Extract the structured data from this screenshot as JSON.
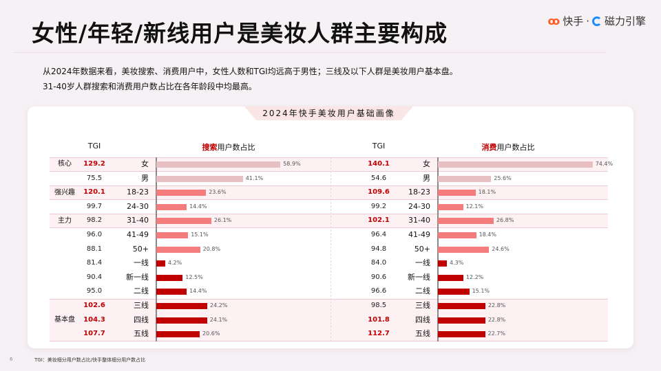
{
  "header": {
    "title": "女性/年轻/新线用户是美妆人群主要构成",
    "logo_kuaishou": "快手",
    "logo_dot": "·",
    "logo_cili": "磁力引擎"
  },
  "description": [
    "从2024年数据来看，美妆搜索、消费用户中，女性人数和TGI均远高于男性；三线及以下人群是美妆用户基本盘。",
    "31-40岁人群搜索和消费用户数占比在各年龄段中均最高。"
  ],
  "card": {
    "title": "2024年快手美妆用户基础画像"
  },
  "footnote": "TGI：美妆细分用户数占比/快手整体细分用户数占比",
  "page_number": "6",
  "colors": {
    "gender": "#e8bfc3",
    "age": "#f47c7c",
    "city": "#c00000",
    "tgi_high": "#c00000"
  },
  "chart_data": {
    "type": "bar",
    "categories": [
      "女",
      "男",
      "18-23",
      "24-30",
      "31-40",
      "41-49",
      "50+",
      "一线",
      "新一线",
      "二线",
      "三线",
      "四线",
      "五线"
    ],
    "groups": [
      {
        "label": "核心",
        "rows": [
          0
        ]
      },
      {
        "label": "强兴趣",
        "rows": [
          2
        ]
      },
      {
        "label": "主力",
        "rows": [
          4
        ]
      },
      {
        "label": "基本盘",
        "rows": [
          10,
          11,
          12
        ]
      }
    ],
    "panels": [
      {
        "tgi_header": "TGI",
        "title_highlight": "搜索",
        "title_rest": "用户数占比",
        "tgi": [
          "129.2",
          "75.5",
          "120.1",
          "99.7",
          "98.2",
          "96.0",
          "88.1",
          "81.4",
          "90.4",
          "95.0",
          "102.6",
          "104.3",
          "107.7"
        ],
        "values": [
          58.9,
          41.1,
          23.6,
          14.4,
          26.1,
          15.1,
          20.8,
          4.2,
          12.5,
          14.4,
          24.2,
          24.1,
          20.6
        ]
      },
      {
        "tgi_header": "TGI",
        "title_highlight": "消费",
        "title_rest": "用户数占比",
        "tgi": [
          "140.1",
          "54.6",
          "109.6",
          "99.2",
          "102.1",
          "96.4",
          "94.8",
          "84.0",
          "90.6",
          "96.6",
          "98.5",
          "101.8",
          "112.7"
        ],
        "values": [
          74.4,
          25.6,
          18.1,
          12.1,
          26.8,
          18.4,
          24.6,
          4.3,
          12.2,
          15.1,
          22.8,
          22.8,
          22.7
        ]
      }
    ],
    "unit": "%"
  }
}
